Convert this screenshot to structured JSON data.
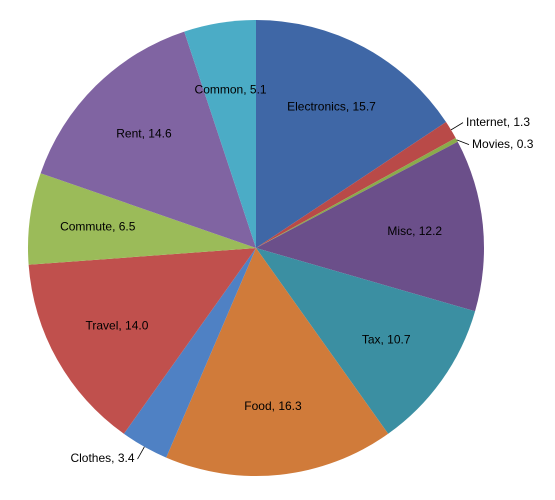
{
  "chart_data": {
    "type": "pie",
    "values": [
      15.7,
      1.3,
      0.3,
      12.2,
      10.7,
      16.3,
      3.4,
      14.0,
      6.5,
      14.6,
      5.1
    ],
    "value_labels": [
      "Electronics, 15.7",
      "Internet, 1.3",
      "Movies, 0.3",
      "Misc, 12.2",
      "Tax, 10.7",
      "Food, 16.3",
      "Clothes, 3.4",
      "Travel, 14.0",
      "Commute, 6.5",
      "Rent, 14.6",
      "Common, 5.1"
    ],
    "colors": [
      "#3f67a6",
      "#b94a48",
      "#8aab4b",
      "#6b4f8a",
      "#3b8fa2",
      "#d07b3a",
      "#4f81c4",
      "#c0504d",
      "#9bbb59",
      "#8064a2",
      "#4bacc6"
    ]
  }
}
